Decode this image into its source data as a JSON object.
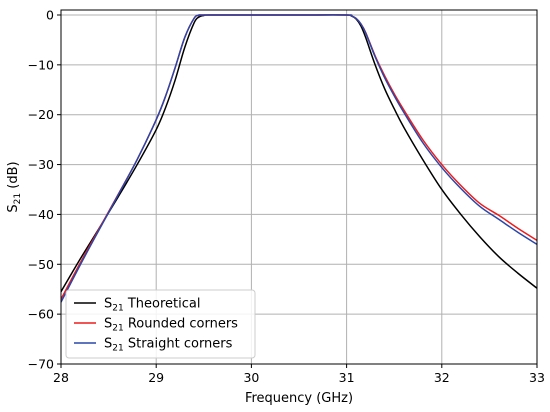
{
  "chart_data": {
    "type": "line",
    "title": "",
    "xlabel": "Frequency (GHz)",
    "ylabel": {
      "base": "S",
      "sub": "21",
      "rest": " (dB)"
    },
    "xlim": [
      28,
      33
    ],
    "ylim": [
      -70,
      1
    ],
    "xticks": [
      28,
      29,
      30,
      31,
      32,
      33
    ],
    "yticks": [
      0,
      -10,
      -20,
      -30,
      -40,
      -50,
      -60,
      -70
    ],
    "xtick_labels": [
      "28",
      "29",
      "30",
      "31",
      "32",
      "33"
    ],
    "ytick_labels": [
      "0",
      "−10",
      "−20",
      "−30",
      "−40",
      "−50",
      "−60",
      "−70"
    ],
    "grid": true,
    "legend_position": "lower-left",
    "series": [
      {
        "name": {
          "base": "S",
          "sub": "21",
          "rest": " Theoretical"
        },
        "color": "#000000",
        "x": [
          28.0,
          28.2,
          28.4,
          28.6,
          28.8,
          29.0,
          29.1,
          29.2,
          29.3,
          29.4,
          29.45,
          29.5,
          29.55,
          30.0,
          30.5,
          31.0,
          31.05,
          31.1,
          31.15,
          31.2,
          31.3,
          31.4,
          31.5,
          31.6,
          31.8,
          32.0,
          32.2,
          32.4,
          32.6,
          32.8,
          33.0
        ],
        "y": [
          -55.5,
          -49.0,
          -42.8,
          -36.5,
          -30.0,
          -23.0,
          -18.5,
          -13.0,
          -6.5,
          -1.5,
          -0.4,
          -0.1,
          0,
          0,
          0,
          0,
          -0.2,
          -0.8,
          -2.2,
          -4.5,
          -10.0,
          -14.8,
          -18.8,
          -22.5,
          -29.0,
          -35.0,
          -40.0,
          -44.5,
          -48.5,
          -51.8,
          -54.8
        ]
      },
      {
        "name": {
          "base": "S",
          "sub": "21",
          "rest": " Rounded corners"
        },
        "color": "#ee1c1c",
        "x": [
          28.0,
          28.2,
          28.4,
          28.6,
          28.8,
          29.0,
          29.1,
          29.2,
          29.3,
          29.4,
          29.45,
          29.5,
          30.0,
          30.5,
          31.0,
          31.05,
          31.1,
          31.15,
          31.2,
          31.3,
          31.4,
          31.5,
          31.6,
          31.8,
          32.0,
          32.2,
          32.4,
          32.6,
          32.8,
          33.0
        ],
        "y": [
          -57.0,
          -49.8,
          -42.9,
          -36.0,
          -29.0,
          -21.0,
          -16.2,
          -10.5,
          -4.5,
          -0.6,
          -0.1,
          0,
          0,
          0,
          0,
          -0.2,
          -0.7,
          -1.8,
          -3.5,
          -8.2,
          -12.2,
          -15.8,
          -19.0,
          -25.0,
          -30.0,
          -34.2,
          -37.8,
          -40.2,
          -42.8,
          -45.2
        ]
      },
      {
        "name": {
          "base": "S",
          "sub": "21",
          "rest": " Straight corners"
        },
        "color": "#2a46a8",
        "x": [
          28.0,
          28.2,
          28.4,
          28.6,
          28.8,
          29.0,
          29.1,
          29.2,
          29.3,
          29.4,
          29.45,
          29.5,
          30.0,
          30.5,
          31.0,
          31.05,
          31.1,
          31.15,
          31.2,
          31.3,
          31.4,
          31.5,
          31.6,
          31.8,
          32.0,
          32.2,
          32.4,
          32.6,
          32.8,
          33.0
        ],
        "y": [
          -57.6,
          -50.2,
          -43.1,
          -36.1,
          -29.0,
          -21.0,
          -16.2,
          -10.5,
          -4.5,
          -0.6,
          -0.1,
          0,
          0,
          0,
          0,
          -0.2,
          -0.7,
          -1.8,
          -3.6,
          -8.4,
          -12.6,
          -16.2,
          -19.5,
          -25.6,
          -30.6,
          -34.8,
          -38.4,
          -41.0,
          -43.6,
          -46.0
        ]
      }
    ]
  }
}
